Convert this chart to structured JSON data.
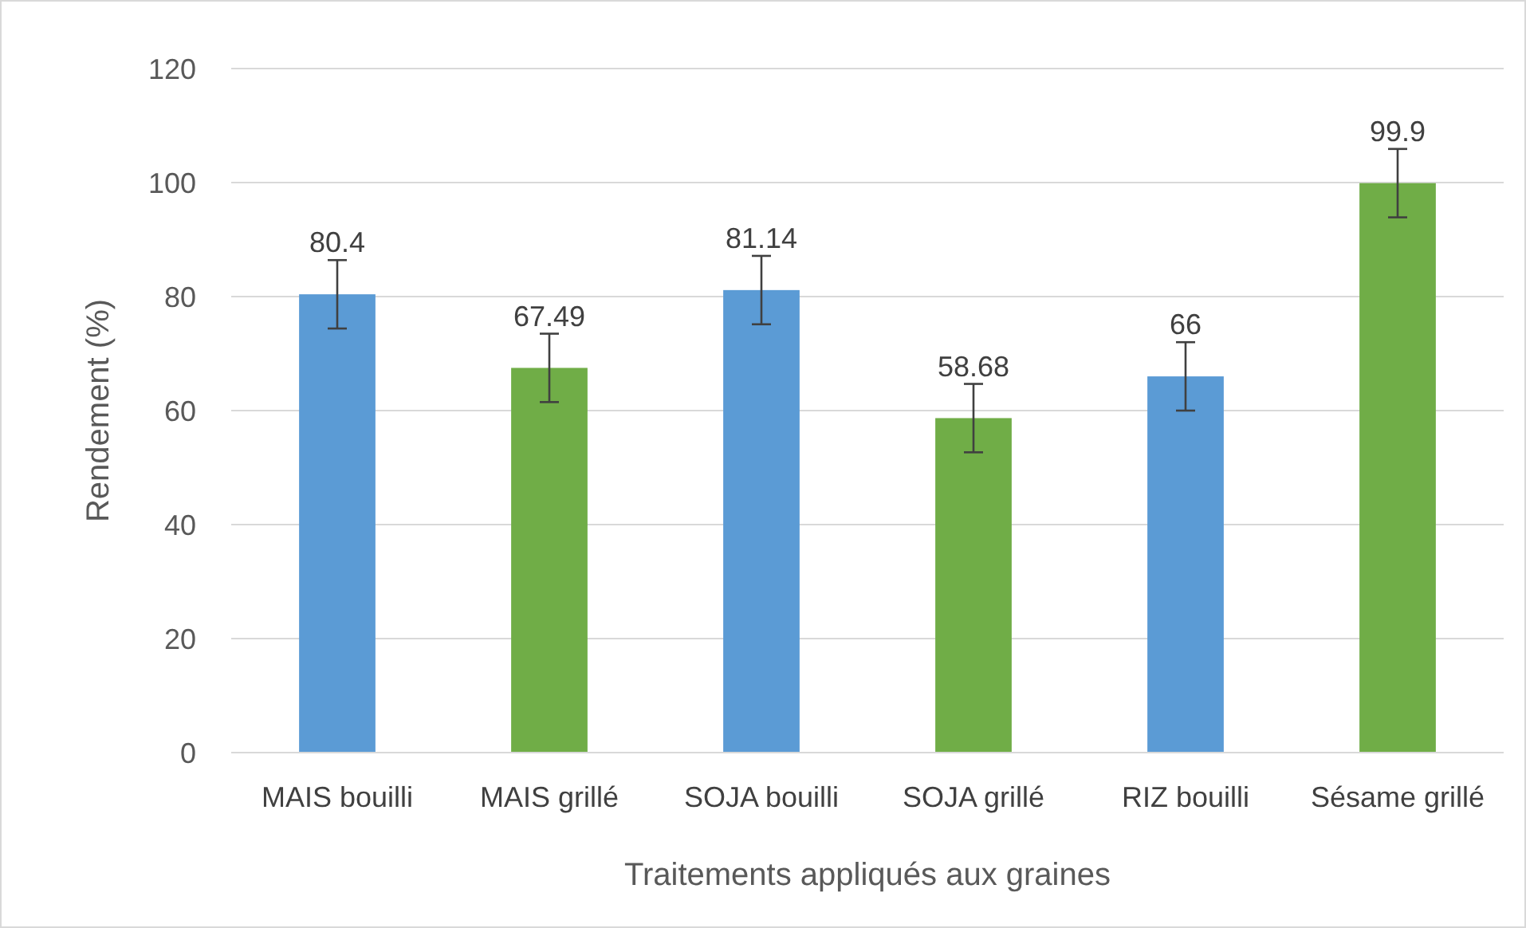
{
  "chart_data": {
    "type": "bar",
    "xlabel": "Traitements appliqués aux graines",
    "ylabel": "Rendement (%)",
    "categories": [
      "MAIS bouilli",
      "MAIS grillé",
      "SOJA bouilli",
      "SOJA grillé",
      "RIZ bouilli",
      "Sésame grillé"
    ],
    "values": [
      80.4,
      67.49,
      81.14,
      58.68,
      66,
      99.9
    ],
    "colors": [
      "#5b9bd5",
      "#70ad47",
      "#5b9bd5",
      "#70ad47",
      "#5b9bd5",
      "#70ad47"
    ],
    "errors": [
      6,
      6,
      6,
      6,
      6,
      6
    ],
    "data_labels": true,
    "ylim": [
      0,
      120
    ],
    "yticks": [
      0,
      20,
      40,
      60,
      80,
      100,
      120
    ],
    "grid": "y"
  }
}
